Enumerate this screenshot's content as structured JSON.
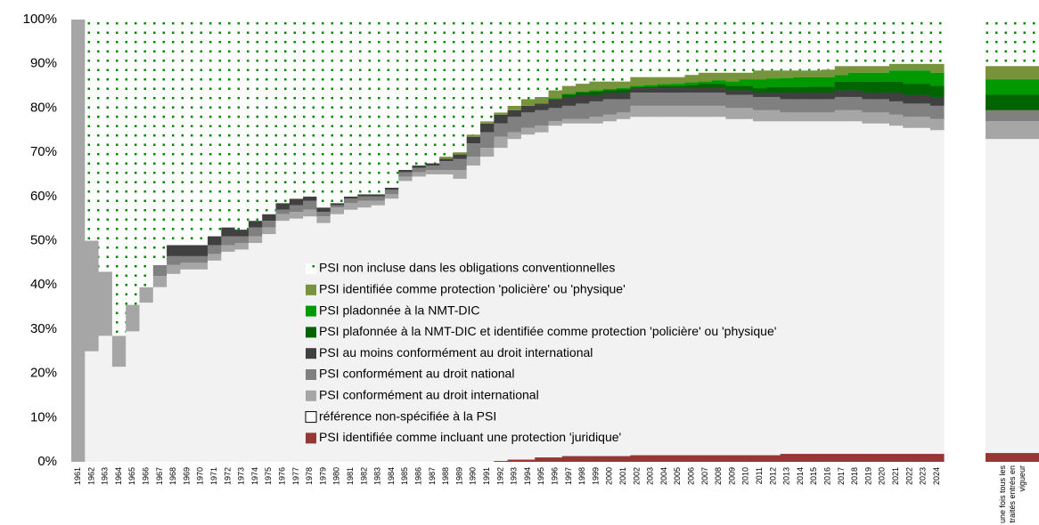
{
  "chart_data": {
    "type": "stacked_bar",
    "categories": [
      "1961",
      "1962",
      "1963",
      "1964",
      "1965",
      "1966",
      "1967",
      "1968",
      "1969",
      "1970",
      "1971",
      "1972",
      "1973",
      "1974",
      "1975",
      "1976",
      "1977",
      "1978",
      "1979",
      "1980",
      "1981",
      "1982",
      "1983",
      "1984",
      "1985",
      "1986",
      "1987",
      "1988",
      "1989",
      "1990",
      "1991",
      "1992",
      "1993",
      "1994",
      "1995",
      "1996",
      "1997",
      "1998",
      "1999",
      "2000",
      "2001",
      "2002",
      "2003",
      "2004",
      "2005",
      "2006",
      "2007",
      "2008",
      "2009",
      "2010",
      "2011",
      "2012",
      "2013",
      "2014",
      "2015",
      "2016",
      "2017",
      "2018",
      "2019",
      "2020",
      "2021",
      "2022",
      "2023",
      "2024",
      "une fois tous les traités entrés en vigueur"
    ],
    "series": [
      {
        "name": "PSI identifiée comme incluant une protection 'juridique'",
        "color": "#953735",
        "values": [
          0,
          0,
          0,
          0,
          0,
          0,
          0,
          0,
          0,
          0,
          0,
          0,
          0,
          0,
          0,
          0,
          0,
          0,
          0,
          0,
          0,
          0,
          0,
          0,
          0,
          0,
          0,
          0,
          0,
          0,
          0,
          0.2,
          0.5,
          0.5,
          1,
          1,
          1.3,
          1.3,
          1.3,
          1.3,
          1.3,
          1.5,
          1.5,
          1.5,
          1.5,
          1.5,
          1.5,
          1.5,
          1.5,
          1.5,
          1.5,
          1.5,
          1.8,
          1.8,
          1.8,
          1.8,
          1.8,
          1.8,
          1.8,
          1.8,
          1.8,
          1.8,
          1.8,
          1.8,
          2
        ]
      },
      {
        "name": "référence non-spécifiée à la PSI",
        "color": "#f2f2f2",
        "values": [
          0,
          25,
          28.5,
          21.5,
          29.5,
          36,
          39.5,
          42.5,
          43.5,
          43.5,
          45.5,
          47.5,
          48,
          49.5,
          51.5,
          54.5,
          55,
          55.5,
          54,
          56,
          57,
          57.5,
          58,
          59.5,
          63.5,
          64.5,
          65,
          65,
          64,
          67,
          69,
          70.8,
          72.5,
          73.5,
          73.5,
          75,
          75.2,
          75.2,
          75.2,
          75.7,
          76.2,
          76.5,
          76.5,
          76.5,
          76.5,
          76.5,
          76.5,
          76.5,
          76,
          76,
          75.5,
          75.5,
          75.2,
          75.2,
          75.2,
          75.2,
          75.2,
          75.2,
          74.7,
          74.7,
          74.2,
          73.7,
          73.7,
          73.2,
          71
        ]
      },
      {
        "name": "PSI conformément au droit international",
        "color": "#a6a6a6",
        "values": [
          100,
          25,
          14.5,
          7,
          6,
          3.5,
          2.5,
          2,
          1.5,
          1.5,
          1.5,
          1.5,
          1.5,
          1.5,
          1.5,
          1.5,
          1.5,
          1.5,
          1.5,
          1.5,
          1.5,
          1.5,
          1,
          1,
          1,
          1,
          1,
          1,
          2,
          2,
          2,
          2.5,
          1.5,
          1.5,
          1.5,
          1,
          1,
          1,
          1.5,
          1.5,
          1.5,
          2.5,
          2.5,
          2.5,
          2.5,
          2.5,
          2.5,
          2.5,
          2.5,
          2.5,
          2.5,
          2.5,
          2,
          2,
          2,
          2,
          2.5,
          2.5,
          2.5,
          2.5,
          2.5,
          2.5,
          2.5,
          2.5,
          4
        ]
      },
      {
        "name": "PSI conformément au droit national",
        "color": "#808080",
        "values": [
          0,
          0,
          0,
          0,
          0,
          0,
          2.5,
          2,
          1.5,
          1.5,
          2,
          2,
          1.5,
          2,
          1.5,
          1,
          1.5,
          2,
          1,
          0.5,
          1,
          1,
          1,
          1,
          1,
          1,
          1,
          2,
          2.5,
          3,
          3.5,
          3,
          3.5,
          3.5,
          3.5,
          3,
          3,
          3.5,
          3.5,
          3.5,
          3,
          3,
          3,
          3,
          3,
          3,
          3,
          3,
          3,
          3,
          3,
          3,
          3,
          3,
          3,
          3,
          3,
          3,
          3,
          3,
          3,
          3,
          3,
          3,
          2.5
        ]
      },
      {
        "name": "PSI au moins conformément au droit international",
        "color": "#404040",
        "values": [
          0,
          0,
          0,
          0,
          0,
          0,
          0,
          2.5,
          2.5,
          2.5,
          2,
          2,
          1.5,
          1.5,
          1.5,
          1.5,
          1.5,
          1,
          1,
          0.5,
          0.5,
          0.5,
          0.5,
          0.5,
          0.5,
          0.5,
          0.5,
          0.5,
          1,
          1.5,
          2,
          2,
          1.5,
          1.5,
          1.5,
          2,
          2,
          2,
          1.5,
          1.5,
          1.5,
          1,
          1,
          1,
          1,
          1,
          1,
          1,
          1,
          1,
          1,
          1,
          1.5,
          1.5,
          1.5,
          1.5,
          1.5,
          1.5,
          1.5,
          1.5,
          2,
          2,
          2,
          2,
          0
        ]
      },
      {
        "name": "PSI plafonnée à la NMT-DIC et identifiée comme protection 'policière' ou 'physique'",
        "color": "#006400",
        "values": [
          0,
          0,
          0,
          0,
          0,
          0,
          0,
          0,
          0,
          0,
          0,
          0,
          0,
          0,
          0,
          0,
          0,
          0,
          0,
          0,
          0,
          0,
          0,
          0,
          0,
          0,
          0,
          0,
          0,
          0,
          0,
          0,
          0,
          0,
          0,
          0,
          0.5,
          0.5,
          0.7,
          0.5,
          0.7,
          0.2,
          0.3,
          0.5,
          0.5,
          0.7,
          1,
          1,
          1,
          1,
          1,
          1.2,
          1.2,
          1.2,
          1.3,
          1.3,
          2,
          2,
          2.5,
          2.5,
          2.5,
          2.5,
          2.5,
          2.5,
          3.5
        ]
      },
      {
        "name": "PSI pladonnée à la NMT-DIC",
        "color": "#009a00",
        "values": [
          0,
          0,
          0,
          0,
          0,
          0,
          0,
          0,
          0,
          0,
          0,
          0,
          0,
          0,
          0,
          0,
          0,
          0,
          0,
          0,
          0,
          0,
          0,
          0,
          0,
          0,
          0,
          0,
          0,
          0,
          0,
          0,
          0,
          0,
          0,
          0.2,
          0.2,
          0.2,
          0.3,
          0.3,
          0.3,
          0.3,
          0.4,
          0.4,
          0.5,
          0.6,
          0.5,
          0.8,
          1,
          1.5,
          2,
          2,
          2.1,
          2.3,
          2.2,
          2.2,
          1.5,
          2,
          2,
          2,
          2.5,
          3,
          3,
          3,
          3.5
        ]
      },
      {
        "name": "PSI identifiée comme protection 'policière' ou 'physique'",
        "color": "#77933c",
        "values": [
          0,
          0,
          0,
          0,
          0,
          0,
          0,
          0,
          0,
          0,
          0,
          0,
          0,
          0,
          0,
          0,
          0,
          0,
          0,
          0,
          0,
          0,
          0,
          0,
          0,
          0,
          0,
          0.5,
          0.5,
          0.5,
          0.5,
          0.5,
          1,
          1.5,
          1.5,
          1.8,
          1.8,
          1.8,
          2,
          1.7,
          1.5,
          2,
          1.8,
          1.6,
          1.5,
          1.7,
          2,
          1.7,
          2,
          1.5,
          2,
          1.8,
          1.7,
          1.5,
          1.5,
          1.7,
          2,
          1.5,
          1.5,
          1.5,
          1.5,
          1.5,
          1.5,
          2,
          3
        ]
      },
      {
        "name": "PSI non incluse dans les obligations conventionnelles",
        "color": "#008a00",
        "fill_style": "dotted",
        "values": [
          0,
          50,
          57,
          71.5,
          64.5,
          60.5,
          55.5,
          51,
          51,
          51,
          49,
          47,
          47.5,
          45.5,
          44,
          41.5,
          40.5,
          40,
          42.5,
          41.5,
          40,
          39.5,
          39.5,
          38,
          34,
          33,
          32.5,
          31,
          30,
          26,
          23,
          21,
          19.5,
          18,
          17.5,
          16,
          15,
          14.5,
          14,
          14,
          14,
          13,
          13,
          13,
          13,
          12.5,
          12,
          12,
          12,
          12,
          11.5,
          11.5,
          11.5,
          11.5,
          11.5,
          11.3,
          10.5,
          10.5,
          10.5,
          10.5,
          10,
          10,
          10,
          10,
          10.5
        ]
      }
    ],
    "ylim": [
      0,
      100
    ],
    "yticks": [
      {
        "value": 0,
        "label": "0%"
      },
      {
        "value": 10,
        "label": "10%"
      },
      {
        "value": 20,
        "label": "20%"
      },
      {
        "value": 30,
        "label": "30%"
      },
      {
        "value": 40,
        "label": "40%"
      },
      {
        "value": 50,
        "label": "50%"
      },
      {
        "value": 60,
        "label": "60%"
      },
      {
        "value": 70,
        "label": "70%"
      },
      {
        "value": 80,
        "label": "80%"
      },
      {
        "value": 90,
        "label": "90%"
      },
      {
        "value": 100,
        "label": "100%"
      }
    ],
    "grid": false,
    "legend": "inside-center"
  }
}
